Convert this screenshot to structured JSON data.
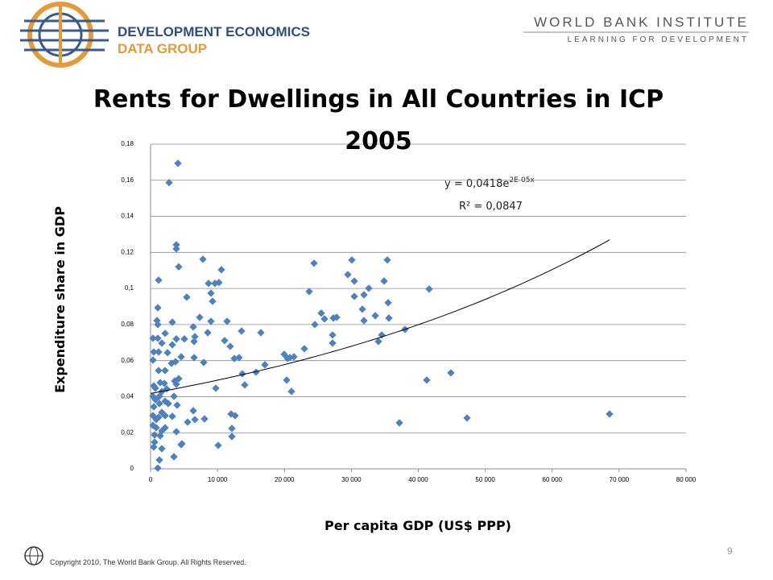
{
  "header": {
    "logo_line1": "DEVELOPMENT ECONOMICS",
    "logo_line2": "DATA GROUP",
    "institute": "WORLD BANK INSTITUTE",
    "tagline": "LEARNING FOR DEVELOPMENT"
  },
  "footer": {
    "copyright": "Copyright  2010, The World Bank Group. All Rights Reserved.",
    "page": "9"
  },
  "chart_data": {
    "type": "scatter",
    "title": "Rents for Dwellings in All Countries in ICP 2005",
    "x_label": "Per capita GDP (US$ PPP)",
    "y_label": "Expenditure share in GDP",
    "annotations": {
      "equation": "y = 0,0418e",
      "exponent": "2E-05x",
      "r2": "R² = 0,0847"
    },
    "color": "#4f81bd",
    "grid": true,
    "trendline": {
      "a": 0.0418,
      "b": 1.62e-05,
      "xlim": [
        0,
        68600
      ]
    },
    "xlim": [
      0,
      80000
    ],
    "ylim": [
      0,
      0.18
    ],
    "xticks": [
      0,
      {
        "value": 10000,
        "label": "10 000"
      },
      {
        "value": 20000,
        "label": "20 000"
      },
      {
        "value": 30000,
        "label": "30 000"
      },
      {
        "value": 40000,
        "label": "40 000"
      },
      {
        "value": 50000,
        "label": "50 000"
      },
      {
        "value": 60000,
        "label": "60 000"
      },
      {
        "value": 70000,
        "label": "70 000"
      },
      {
        "value": 80000,
        "label": "80 000"
      }
    ],
    "yticks": [
      0,
      {
        "value": 0.02,
        "label": "0,02"
      },
      {
        "value": 0.04,
        "label": "0,04"
      },
      {
        "value": 0.06,
        "label": "0,06"
      },
      {
        "value": 0.08,
        "label": "0,08"
      },
      {
        "value": 0.1,
        "label": "0,1"
      },
      {
        "value": 0.12,
        "label": "0,12"
      },
      {
        "value": 0.14,
        "label": "0,14"
      },
      {
        "value": 0.16,
        "label": "0,16"
      },
      {
        "value": 0.18,
        "label": "0,18"
      }
    ],
    "x": [
      4090,
      2770,
      3850,
      3850,
      4210,
      1200,
      1080,
      960,
      1080,
      2170,
      360,
      1080,
      1680,
      3250,
      2530,
      480,
      1200,
      3250,
      3850,
      360,
      1200,
      2170,
      3130,
      3730,
      4570,
      4210,
      3610,
      1440,
      2050,
      480,
      720,
      2410,
      3850,
      1680,
      360,
      1320,
      3490,
      720,
      2170,
      1320,
      2650,
      3970,
      480,
      1680,
      360,
      1200,
      2170,
      3250,
      840,
      360,
      840,
      2170,
      1680,
      3850,
      600,
      1440,
      600,
      480,
      1680,
      4570,
      3490,
      1320,
      1080,
      5530,
      6380,
      6620,
      4690,
      5410,
      6620,
      6500,
      5050,
      6380,
      7340,
      6500,
      7820,
      8660,
      9620,
      10220,
      10580,
      9020,
      9260,
      8540,
      9020,
      7940,
      8060,
      9740,
      10100,
      11060,
      11430,
      11900,
      12510,
      13230,
      13590,
      13710,
      14070,
      12030,
      12630,
      12150,
      12150,
      15760,
      16480,
      17080,
      19970,
      20450,
      20810,
      20330,
      21050,
      21410,
      22980,
      23700,
      24420,
      24540,
      25500,
      25980,
      27310,
      27190,
      27190,
      27790,
      29470,
      30070,
      30440,
      30440,
      31640,
      31880,
      31880,
      32600,
      33570,
      34040,
      34530,
      34890,
      35370,
      35490,
      35610,
      37170,
      38010,
      41620,
      41260,
      44870,
      47280,
      68570
    ],
    "values": [
      0.1694,
      0.1587,
      0.1242,
      0.122,
      0.112,
      0.1046,
      0.0893,
      0.0822,
      0.08,
      0.0751,
      0.0724,
      0.0724,
      0.0697,
      0.0813,
      0.0644,
      0.0648,
      0.0648,
      0.0688,
      0.072,
      0.0603,
      0.0545,
      0.0545,
      0.0585,
      0.0594,
      0.0621,
      0.05,
      0.0487,
      0.0478,
      0.0474,
      0.046,
      0.0447,
      0.0443,
      0.0469,
      0.0429,
      0.0402,
      0.0402,
      0.0402,
      0.0384,
      0.0375,
      0.0362,
      0.0362,
      0.0353,
      0.0344,
      0.0313,
      0.0295,
      0.0286,
      0.0295,
      0.0291,
      0.0273,
      0.0241,
      0.0228,
      0.0228,
      0.021,
      0.0206,
      0.0188,
      0.0183,
      0.0148,
      0.0121,
      0.0112,
      0.0134,
      0.0067,
      0.0049,
      0.0004,
      0.0259,
      0.0322,
      0.0273,
      0.0139,
      0.0952,
      0.0733,
      0.0706,
      0.072,
      0.0787,
      0.084,
      0.0617,
      0.1162,
      0.1028,
      0.1028,
      0.1033,
      0.1104,
      0.0974,
      0.0929,
      0.0755,
      0.0818,
      0.059,
      0.0277,
      0.0447,
      0.013,
      0.0711,
      0.0818,
      0.0679,
      0.0612,
      0.0617,
      0.0764,
      0.0527,
      0.0465,
      0.0304,
      0.0295,
      0.0224,
      0.0179,
      0.0536,
      0.0755,
      0.0577,
      0.0635,
      0.0612,
      0.0617,
      0.0492,
      0.0429,
      0.0621,
      0.0666,
      0.0983,
      0.114,
      0.08,
      0.0863,
      0.0831,
      0.0836,
      0.0742,
      0.0697,
      0.084,
      0.1077,
      0.1158,
      0.1041,
      0.0956,
      0.0885,
      0.0965,
      0.0822,
      0.1001,
      0.0849,
      0.0706,
      0.0742,
      0.1041,
      0.1158,
      0.0921,
      0.0836,
      0.0255,
      0.0773,
      0.0997,
      0.0492,
      0.0532,
      0.0282,
      0.0304
    ]
  }
}
